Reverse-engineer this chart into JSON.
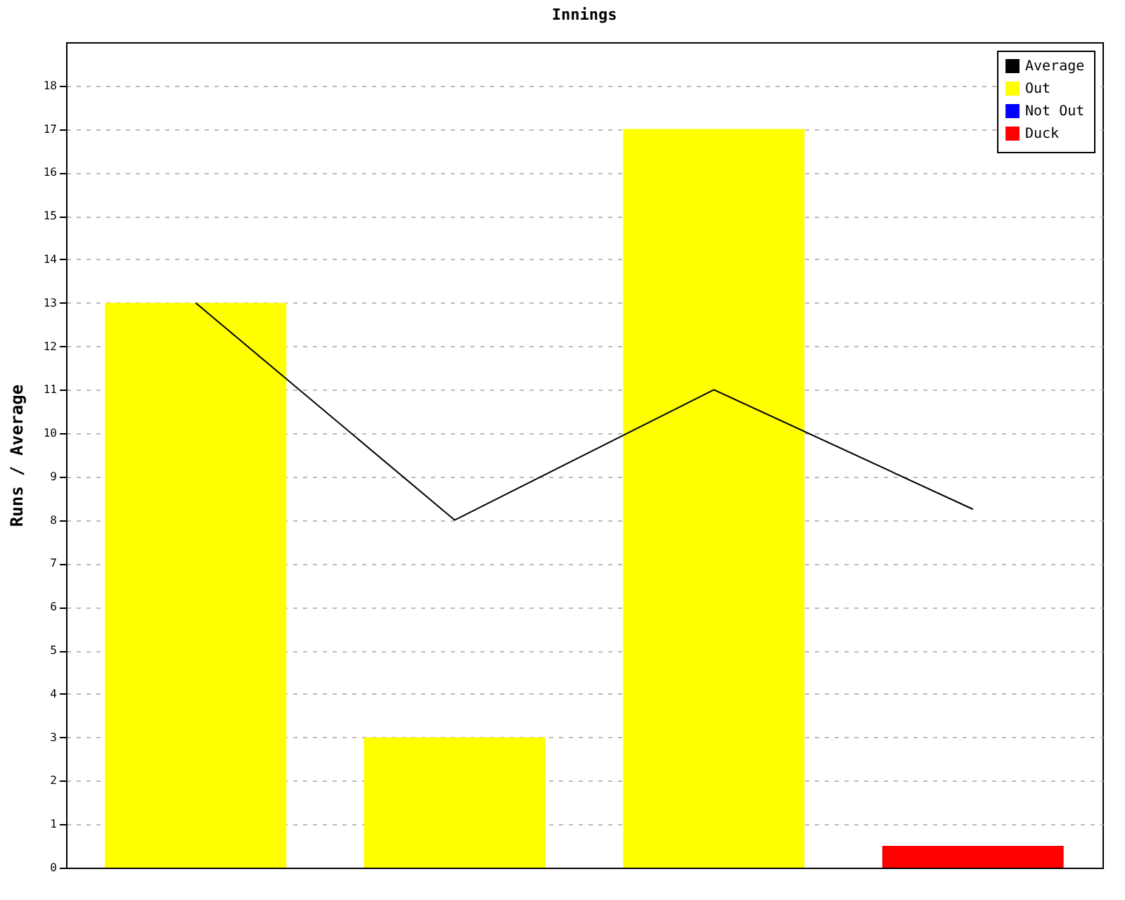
{
  "chart_data": {
    "type": "bar",
    "title": "Innings",
    "ylabel": "Runs / Average",
    "categories": [
      null,
      null,
      null,
      null
    ],
    "series": [
      {
        "name": "Average",
        "type": "line",
        "color": "#000000",
        "values": [
          13,
          8,
          11,
          8.25
        ]
      },
      {
        "name": "Out",
        "color": "#ffff00",
        "values": [
          13,
          3,
          17,
          null
        ]
      },
      {
        "name": "Not Out",
        "color": "#0000ff",
        "values": [
          null,
          null,
          null,
          null
        ]
      },
      {
        "name": "Duck",
        "color": "#ff0000",
        "values": [
          null,
          null,
          null,
          0.5
        ]
      }
    ],
    "stacked": true,
    "ylim": [
      0,
      19
    ],
    "yticks": [
      0,
      1,
      2,
      3,
      4,
      5,
      6,
      7,
      8,
      9,
      10,
      11,
      12,
      13,
      14,
      15,
      16,
      17,
      18
    ],
    "grid": "y",
    "legend": "top right"
  }
}
